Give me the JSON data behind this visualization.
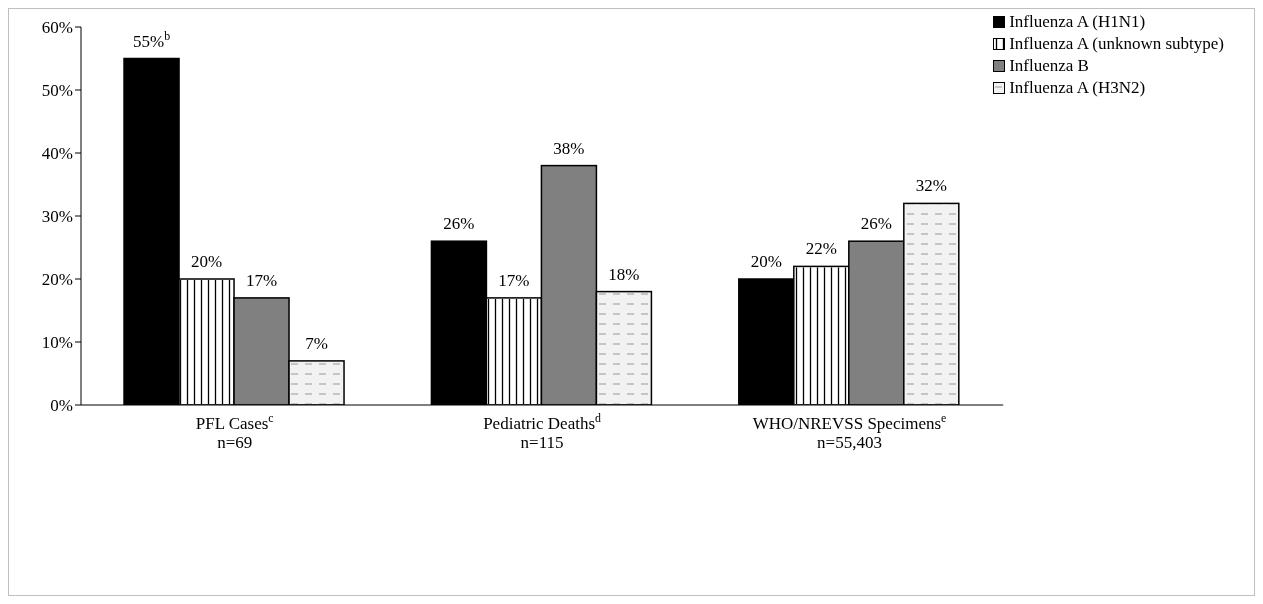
{
  "chart_data": {
    "type": "bar",
    "categories": [
      "PFL Cases$^{c}$\nn=69",
      "Pediatric Deaths$^{d}$\nn=115",
      "WHO/NREVSS Specimens$^{e}$\nn=55,403"
    ],
    "series": [
      {
        "name": "Influenza A (H1N1)",
        "color": "#000000",
        "values": [
          55,
          26,
          20
        ],
        "value_labels": [
          "55%$^{b}$",
          "26%",
          "20%"
        ]
      },
      {
        "name": "Influenza A (unknown subtype)",
        "color": "#ffffff",
        "values": [
          20,
          17,
          22
        ],
        "value_labels": [
          "20%",
          "17%",
          "22%"
        ]
      },
      {
        "name": "Influenza B",
        "color": "#808080",
        "values": [
          17,
          38,
          26
        ],
        "value_labels": [
          "17%",
          "38%",
          "26%"
        ]
      },
      {
        "name": "Influenza A (H3N2)",
        "color": "#f2f2f2",
        "values": [
          7,
          18,
          32
        ],
        "value_labels": [
          "7%",
          "18%",
          "32%"
        ]
      }
    ],
    "ylim": [
      0,
      60
    ],
    "yticks": [
      {
        "value": 0,
        "label": "0%"
      },
      {
        "value": 10,
        "label": "10%"
      },
      {
        "value": 20,
        "label": "20%"
      },
      {
        "value": 30,
        "label": "30%"
      },
      {
        "value": 40,
        "label": "40%"
      },
      {
        "value": 50,
        "label": "50%"
      },
      {
        "value": 60,
        "label": "60%"
      }
    ],
    "grid": false,
    "legend": "top right"
  }
}
